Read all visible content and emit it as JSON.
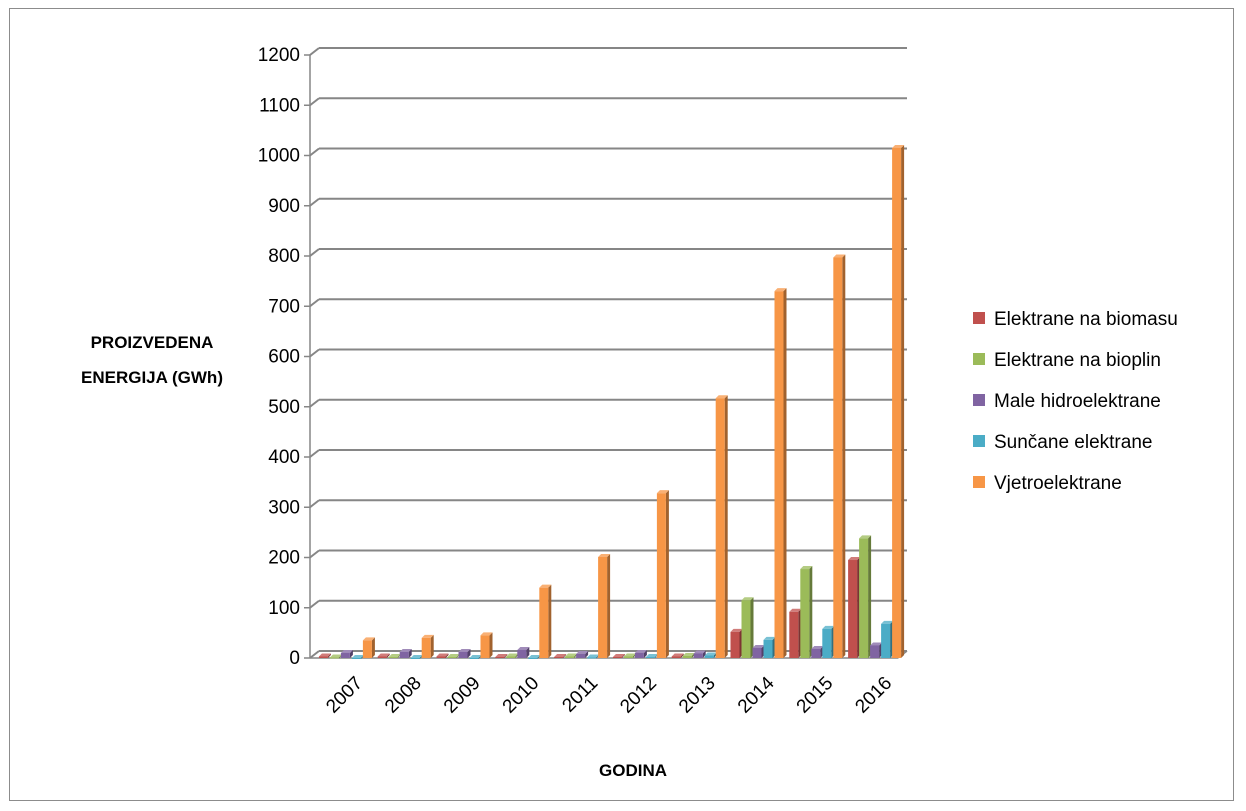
{
  "chart_data": {
    "type": "bar",
    "title": "",
    "xlabel": "GODINA",
    "ylabel_lines": [
      "PROIZVEDENA",
      "ENERGIJA (GWh)"
    ],
    "ylim": [
      0,
      1200
    ],
    "yticks": [
      "0",
      "100",
      "200",
      "300",
      "400",
      "500",
      "600",
      "700",
      "800",
      "900",
      "1000",
      "1100",
      "1200"
    ],
    "categories": [
      "2007",
      "2008",
      "2009",
      "2010",
      "2011",
      "2012",
      "2013",
      "2014",
      "2015",
      "2016"
    ],
    "grid": true,
    "legend_position": "right",
    "series": [
      {
        "name": "Elektrane na biomasu",
        "color": "#c0504d",
        "values": [
          3,
          3,
          3,
          2,
          2,
          2,
          3,
          52,
          92,
          195
        ]
      },
      {
        "name": "Elektrane na bioplin",
        "color": "#9bbb59",
        "values": [
          1,
          2,
          2,
          3,
          3,
          3,
          4,
          115,
          177,
          238
        ]
      },
      {
        "name": "Male hidroelektrane",
        "color": "#8064a2",
        "values": [
          10,
          12,
          12,
          16,
          8,
          10,
          9,
          20,
          18,
          25
        ]
      },
      {
        "name": "Sunčane elektrane",
        "color": "#4bacc6",
        "values": [
          0,
          0,
          0,
          0,
          1,
          2,
          5,
          36,
          58,
          68
        ]
      },
      {
        "name": "Vjetroelektrane",
        "color": "#f79646",
        "values": [
          35,
          40,
          45,
          140,
          201,
          328,
          517,
          730,
          797,
          1015
        ]
      }
    ]
  }
}
